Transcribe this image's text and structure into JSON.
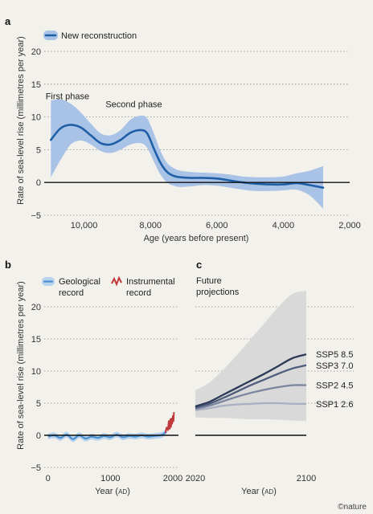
{
  "credit": "©nature",
  "chart_data": [
    {
      "panel": "a",
      "type": "line",
      "ylabel": "Rate of sea-level rise (millimetres per year)",
      "xlabel": "Age (years before present)",
      "xlim": [
        11200,
        2000
      ],
      "ylim": [
        -5,
        20
      ],
      "xticks": [
        "10,000",
        "8,000",
        "6,000",
        "4,000",
        "2,000"
      ],
      "xtick_values": [
        10000,
        8000,
        6000,
        4000,
        2000
      ],
      "yticks": [
        "−5",
        "0",
        "5",
        "10",
        "15",
        "20"
      ],
      "ytick_values": [
        -5,
        0,
        5,
        10,
        15,
        20
      ],
      "legend": [
        "New reconstruction"
      ],
      "annotations": [
        {
          "text": "First phase",
          "x": 10500,
          "y": 12.7
        },
        {
          "text": "Second phase",
          "x": 8500,
          "y": 11.5
        }
      ],
      "series": [
        {
          "name": "New reconstruction",
          "color": "#1f5fa8",
          "band_color": "#a9c3e6",
          "x": [
            11000,
            10700,
            10400,
            10100,
            9800,
            9500,
            9200,
            8900,
            8600,
            8300,
            8100,
            7900,
            7700,
            7500,
            7300,
            7100,
            6800,
            6400,
            6000,
            5600,
            5200,
            4800,
            4400,
            4000,
            3600,
            3200,
            2800
          ],
          "y": [
            6.5,
            8.3,
            8.8,
            8.4,
            7.2,
            6.0,
            5.8,
            6.5,
            7.6,
            8.0,
            7.5,
            5.2,
            3.0,
            1.6,
            1.0,
            0.8,
            0.7,
            0.7,
            0.6,
            0.3,
            0.0,
            -0.2,
            -0.3,
            -0.3,
            -0.1,
            -0.4,
            -0.8
          ],
          "lower": [
            0.8,
            3.5,
            5.8,
            6.4,
            5.8,
            4.8,
            4.5,
            5.0,
            5.8,
            6.0,
            5.3,
            3.2,
            1.2,
            0.0,
            -0.5,
            -0.7,
            -0.6,
            -0.4,
            -0.5,
            -0.8,
            -1.1,
            -1.3,
            -1.3,
            -1.2,
            -1.1,
            -2.0,
            -4.0
          ],
          "upper": [
            12.5,
            12.7,
            12.0,
            10.7,
            9.0,
            7.5,
            7.2,
            8.0,
            9.6,
            10.2,
            9.8,
            7.5,
            4.8,
            3.0,
            2.2,
            1.8,
            1.6,
            1.5,
            1.4,
            1.2,
            0.9,
            0.8,
            0.8,
            0.9,
            1.4,
            1.8,
            2.5
          ]
        }
      ]
    },
    {
      "panel": "b",
      "type": "line",
      "ylabel": "Rate of sea-level rise (millimetres per year)",
      "xlabel_main": "Year (",
      "xlabel_unit": "AD",
      "xlabel_end": ")",
      "xlim": [
        -60,
        2090
      ],
      "ylim": [
        -5,
        20
      ],
      "xticks": [
        "0",
        "1000",
        "2000"
      ],
      "xtick_values": [
        0,
        1000,
        2000
      ],
      "yticks": [
        "−5",
        "0",
        "5",
        "10",
        "15",
        "20"
      ],
      "ytick_values": [
        -5,
        0,
        5,
        10,
        15,
        20
      ],
      "legend": [
        {
          "line1": "Geological",
          "line2": "record",
          "color": "#5b9bd5"
        },
        {
          "line1": "Instrumental",
          "line2": "record",
          "color": "#c0393b"
        }
      ],
      "series": [
        {
          "name": "Geological record",
          "color": "#4a90d0",
          "band_color": "#b7d3ee",
          "x": [
            0,
            100,
            200,
            300,
            400,
            500,
            600,
            700,
            800,
            900,
            1000,
            1100,
            1200,
            1300,
            1400,
            1500,
            1600,
            1700,
            1800,
            1850,
            1900
          ],
          "y": [
            -0.2,
            0.0,
            -0.4,
            0.1,
            -0.6,
            0.0,
            -0.5,
            -0.2,
            -0.4,
            -0.1,
            -0.3,
            0.1,
            -0.3,
            -0.1,
            -0.2,
            0.0,
            -0.2,
            -0.1,
            0.0,
            0.2,
            0.6
          ],
          "half_width": 0.45
        },
        {
          "name": "Instrumental record",
          "color": "#c0393b",
          "x": [
            1880,
            1900,
            1920,
            1935,
            1950,
            1960,
            1970,
            1980,
            1990,
            2000,
            2010,
            2018
          ],
          "y": [
            0.4,
            1.2,
            0.8,
            2.2,
            1.0,
            2.5,
            1.3,
            2.6,
            1.8,
            3.0,
            2.2,
            3.6
          ]
        }
      ]
    },
    {
      "panel": "c",
      "type": "line",
      "title_line1": "Future",
      "title_line2": "projections",
      "xlabel_main": "Year (",
      "xlabel_unit": "AD",
      "xlabel_end": ")",
      "xlim": [
        2020,
        2100
      ],
      "ylim": [
        -5,
        20
      ],
      "xticks": [
        "2020",
        "2100"
      ],
      "xtick_values": [
        2020,
        2100
      ],
      "band": {
        "color": "#d9d9d9",
        "x": [
          2020,
          2030,
          2040,
          2050,
          2060,
          2070,
          2080,
          2090,
          2100
        ],
        "lower": [
          2.8,
          2.7,
          2.7,
          2.6,
          2.5,
          2.5,
          2.4,
          2.3,
          2.2
        ],
        "upper": [
          7.0,
          8.2,
          10.2,
          12.5,
          15.0,
          17.5,
          20.0,
          22.0,
          22.5
        ]
      },
      "series": [
        {
          "name": "SSP5 8.5",
          "color": "#2c3a57",
          "x": [
            2020,
            2030,
            2040,
            2050,
            2060,
            2070,
            2080,
            2090,
            2100
          ],
          "y": [
            4.5,
            5.2,
            6.3,
            7.4,
            8.5,
            9.6,
            10.8,
            12.0,
            12.6
          ]
        },
        {
          "name": "SSP3 7.0",
          "color": "#4e5d7c",
          "x": [
            2020,
            2030,
            2040,
            2050,
            2060,
            2070,
            2080,
            2090,
            2100
          ],
          "y": [
            4.3,
            4.9,
            5.8,
            6.8,
            7.8,
            8.7,
            9.6,
            10.4,
            10.9
          ]
        },
        {
          "name": "SSP2 4.5",
          "color": "#7a86a0",
          "x": [
            2020,
            2030,
            2040,
            2050,
            2060,
            2070,
            2080,
            2090,
            2100
          ],
          "y": [
            4.1,
            4.6,
            5.3,
            6.0,
            6.6,
            7.1,
            7.5,
            7.8,
            7.8
          ]
        },
        {
          "name": "SSP1 2.6",
          "color": "#a8b0c2",
          "x": [
            2020,
            2030,
            2040,
            2050,
            2060,
            2070,
            2080,
            2090,
            2100
          ],
          "y": [
            3.9,
            4.2,
            4.6,
            4.8,
            4.9,
            5.0,
            5.0,
            4.9,
            4.9
          ]
        }
      ]
    }
  ]
}
